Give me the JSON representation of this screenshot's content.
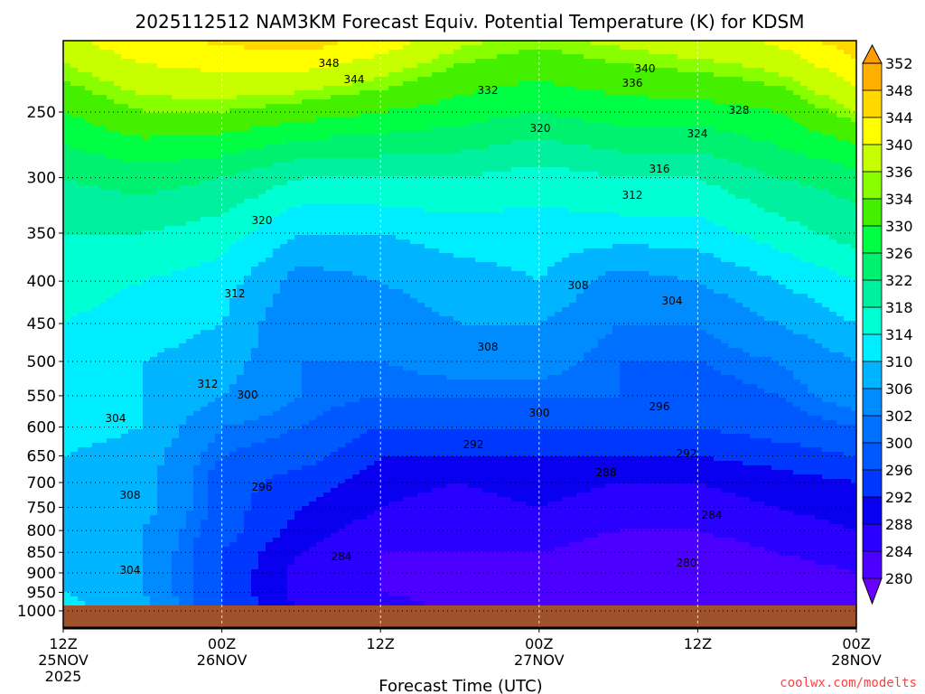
{
  "chart_data": {
    "type": "heatmap",
    "title": "2025112512 NAM3KM Forecast Equiv. Potential Temperature (K) for KDSM",
    "xlabel": "Forecast Time (UTC)",
    "ylabel": "",
    "credit": "coolwx.com/modelts",
    "x_hours_range": [
      0,
      60
    ],
    "x_ticks": [
      {
        "hour": 0,
        "l1": "12Z",
        "l2": "25NOV",
        "l3": "2025"
      },
      {
        "hour": 12,
        "l1": "00Z",
        "l2": "26NOV",
        "l3": ""
      },
      {
        "hour": 24,
        "l1": "12Z",
        "l2": "",
        "l3": ""
      },
      {
        "hour": 36,
        "l1": "00Z",
        "l2": "27NOV",
        "l3": ""
      },
      {
        "hour": 48,
        "l1": "12Z",
        "l2": "",
        "l3": ""
      },
      {
        "hour": 60,
        "l1": "00Z",
        "l2": "28NOV",
        "l3": ""
      }
    ],
    "y_ticks": [
      "250",
      "300",
      "350",
      "400",
      "450",
      "500",
      "550",
      "600",
      "650",
      "700",
      "750",
      "800",
      "850",
      "900",
      "950",
      "1000"
    ],
    "ylim_hpa": [
      1049,
      205
    ],
    "grid_hours": [
      0,
      6,
      12,
      18,
      24,
      30,
      36,
      42,
      48,
      54,
      60
    ],
    "grid_pressures": [
      1000,
      950,
      900,
      850,
      800,
      750,
      700,
      650,
      600,
      550,
      500,
      450,
      400,
      350,
      300,
      250,
      200
    ],
    "values": [
      [
        312,
        310,
        308,
        308,
        308,
        308,
        308,
        310,
        312,
        312,
        312,
        314,
        316,
        318,
        322,
        330,
        340
      ],
      [
        308,
        306,
        306,
        306,
        306,
        308,
        308,
        308,
        310,
        310,
        310,
        312,
        314,
        318,
        324,
        334,
        344
      ],
      [
        296,
        296,
        296,
        296,
        298,
        298,
        298,
        300,
        302,
        306,
        308,
        310,
        312,
        316,
        322,
        334,
        346
      ],
      [
        288,
        286,
        286,
        288,
        290,
        292,
        294,
        298,
        300,
        302,
        302,
        302,
        304,
        310,
        318,
        332,
        348
      ],
      [
        286,
        284,
        284,
        284,
        286,
        288,
        290,
        292,
        296,
        300,
        302,
        304,
        306,
        310,
        318,
        330,
        344
      ],
      [
        284,
        282,
        282,
        284,
        286,
        286,
        288,
        292,
        296,
        300,
        304,
        306,
        308,
        312,
        318,
        328,
        338
      ],
      [
        282,
        282,
        282,
        284,
        286,
        288,
        290,
        292,
        296,
        300,
        304,
        306,
        310,
        312,
        316,
        326,
        336
      ],
      [
        282,
        280,
        280,
        282,
        284,
        286,
        288,
        292,
        296,
        300,
        300,
        302,
        304,
        312,
        318,
        328,
        338
      ],
      [
        282,
        280,
        280,
        282,
        284,
        286,
        288,
        292,
        296,
        298,
        300,
        302,
        306,
        312,
        318,
        328,
        340
      ],
      [
        280,
        280,
        282,
        284,
        286,
        288,
        290,
        294,
        298,
        300,
        302,
        306,
        310,
        316,
        322,
        330,
        342
      ],
      [
        282,
        282,
        284,
        286,
        288,
        290,
        292,
        296,
        300,
        304,
        306,
        310,
        314,
        320,
        324,
        336,
        348
      ]
    ],
    "colorbar": {
      "labels": [
        "352",
        "348",
        "344",
        "340",
        "336",
        "334",
        "330",
        "326",
        "322",
        "318",
        "314",
        "310",
        "306",
        "302",
        "300",
        "296",
        "292",
        "288",
        "284",
        "280"
      ],
      "bounds": [
        280,
        284,
        288,
        292,
        296,
        300,
        302,
        306,
        310,
        314,
        318,
        322,
        326,
        330,
        334,
        336,
        340,
        344,
        348,
        352
      ],
      "colors": [
        "#6a00ff",
        "#4c00ff",
        "#2a00ff",
        "#0a00f0",
        "#0038ff",
        "#0058ff",
        "#0070ff",
        "#008cff",
        "#00b4ff",
        "#00ecff",
        "#00ffd2",
        "#00f0a0",
        "#00f070",
        "#00ff44",
        "#44f000",
        "#88ff00",
        "#c8ff00",
        "#ffff00",
        "#ffd800",
        "#ffb000",
        "#ff9a00"
      ]
    },
    "contour_labels": [
      "348",
      "344",
      "340",
      "336",
      "332",
      "328",
      "324",
      "320",
      "316",
      "312",
      "320",
      "312",
      "308",
      "304",
      "308",
      "312",
      "304",
      "300",
      "300",
      "296",
      "296",
      "292",
      "292",
      "288",
      "284",
      "284",
      "280",
      "304",
      "308"
    ],
    "ground_color": "#a0522d"
  }
}
